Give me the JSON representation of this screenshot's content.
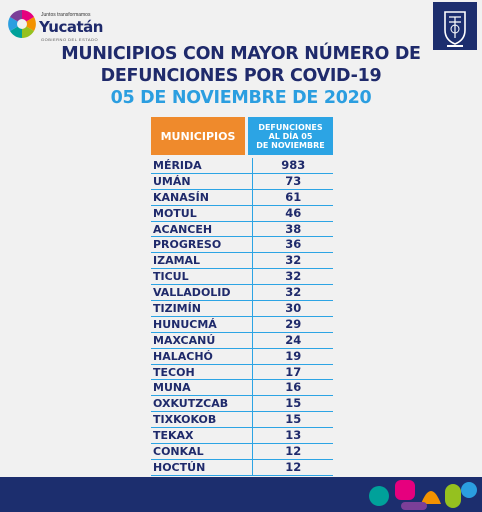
{
  "logo": {
    "tagline": "Juntos transformamos",
    "name": "Yucatán",
    "subtitle": "GOBIERNO DEL ESTADO"
  },
  "title": {
    "line1": "MUNICIPIOS CON MAYOR NÚMERO DE",
    "line2": "DEFUNCIONES POR COVID-19",
    "line3": "05 DE NOVIEMBRE DE 2020"
  },
  "table": {
    "header_municipios": "MUNICIPIOS",
    "header_defunciones": [
      "DEFUNCIONES",
      "AL DÍA 05",
      "DE NOVIEMBRE"
    ],
    "rows": [
      {
        "municipio": "MÉRIDA",
        "defunciones": "983"
      },
      {
        "municipio": "UMÁN",
        "defunciones": "73"
      },
      {
        "municipio": "KANASÍN",
        "defunciones": "61"
      },
      {
        "municipio": "MOTUL",
        "defunciones": "46"
      },
      {
        "municipio": "ACANCEH",
        "defunciones": "38"
      },
      {
        "municipio": "PROGRESO",
        "defunciones": "36"
      },
      {
        "municipio": "IZAMAL",
        "defunciones": "32"
      },
      {
        "municipio": "TICUL",
        "defunciones": "32"
      },
      {
        "municipio": "VALLADOLID",
        "defunciones": "32"
      },
      {
        "municipio": "TIZIMÍN",
        "defunciones": "30"
      },
      {
        "municipio": "HUNUCMÁ",
        "defunciones": "29"
      },
      {
        "municipio": "MAXCANÚ",
        "defunciones": "24"
      },
      {
        "municipio": "HALACHÓ",
        "defunciones": "19"
      },
      {
        "municipio": "TECOH",
        "defunciones": "17"
      },
      {
        "municipio": "MUNA",
        "defunciones": "16"
      },
      {
        "municipio": "OXKUTZCAB",
        "defunciones": "15"
      },
      {
        "municipio": "TIXKOKOB",
        "defunciones": "15"
      },
      {
        "municipio": "TEKAX",
        "defunciones": "13"
      },
      {
        "municipio": "CONKAL",
        "defunciones": "12"
      },
      {
        "municipio": "HOCTÚN",
        "defunciones": "12"
      }
    ]
  },
  "colors": {
    "navy": "#1f2a6b",
    "blue": "#2ca4e4",
    "orange": "#ef8a2c",
    "footer": "#1c2e6e"
  },
  "icons": [
    "yucatan-logo-icon",
    "state-seal-icon",
    "colorful-deco-icon"
  ]
}
